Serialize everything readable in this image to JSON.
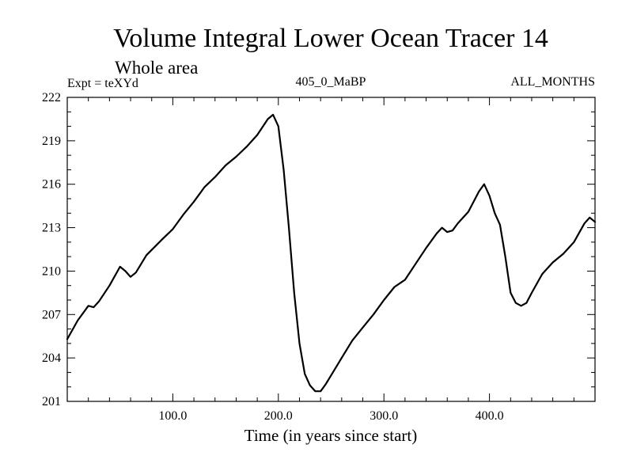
{
  "chart_data": {
    "type": "line",
    "title": "Volume Integral Lower Ocean Tracer 14",
    "subtitle": "Whole area",
    "expt_label": "Expt = teXYd",
    "center_label": "405_0_MaBP",
    "right_label": "ALL_MONTHS",
    "xlabel": "Time (in years since start)",
    "ylabel": "",
    "xlim": [
      0,
      500
    ],
    "ylim": [
      201,
      222
    ],
    "xticks": [
      {
        "value": 100,
        "label": "100.0"
      },
      {
        "value": 200,
        "label": "200.0"
      },
      {
        "value": 300,
        "label": "300.0"
      },
      {
        "value": 400,
        "label": "400.0"
      }
    ],
    "yticks": [
      {
        "value": 201,
        "label": "201"
      },
      {
        "value": 204,
        "label": "204"
      },
      {
        "value": 207,
        "label": "207"
      },
      {
        "value": 210,
        "label": "210"
      },
      {
        "value": 213,
        "label": "213"
      },
      {
        "value": 216,
        "label": "216"
      },
      {
        "value": 219,
        "label": "219"
      },
      {
        "value": 222,
        "label": "222"
      }
    ],
    "grid": false,
    "line_color": "#000000",
    "series": [
      {
        "x": [
          0,
          10,
          20,
          25,
          30,
          40,
          50,
          55,
          60,
          65,
          75,
          90,
          100,
          110,
          120,
          130,
          140,
          150,
          160,
          170,
          180,
          190,
          195,
          200,
          205,
          210,
          215,
          220,
          225,
          230,
          235,
          240,
          245,
          250,
          260,
          270,
          280,
          290,
          300,
          310,
          320,
          330,
          340,
          350,
          355,
          360,
          365,
          370,
          380,
          390,
          395,
          400,
          405,
          410,
          415,
          420,
          425,
          430,
          435,
          440,
          450,
          460,
          470,
          480,
          490,
          495,
          500
        ],
        "y": [
          205.3,
          206.6,
          207.6,
          207.5,
          207.9,
          209.0,
          210.3,
          210.0,
          209.6,
          209.9,
          211.1,
          212.2,
          212.9,
          213.9,
          214.8,
          215.8,
          216.5,
          217.3,
          217.9,
          218.6,
          219.4,
          220.5,
          220.8,
          220.0,
          217.0,
          213.0,
          208.5,
          205.0,
          202.9,
          202.1,
          201.7,
          201.7,
          202.2,
          202.8,
          204.0,
          205.2,
          206.1,
          207.0,
          208.0,
          208.9,
          209.4,
          210.5,
          211.6,
          212.6,
          213.0,
          212.7,
          212.8,
          213.3,
          214.1,
          215.5,
          216.0,
          215.2,
          214.0,
          213.2,
          211.0,
          208.5,
          207.8,
          207.6,
          207.8,
          208.5,
          209.8,
          210.6,
          211.2,
          212.0,
          213.3,
          213.7,
          213.4
        ]
      }
    ]
  }
}
